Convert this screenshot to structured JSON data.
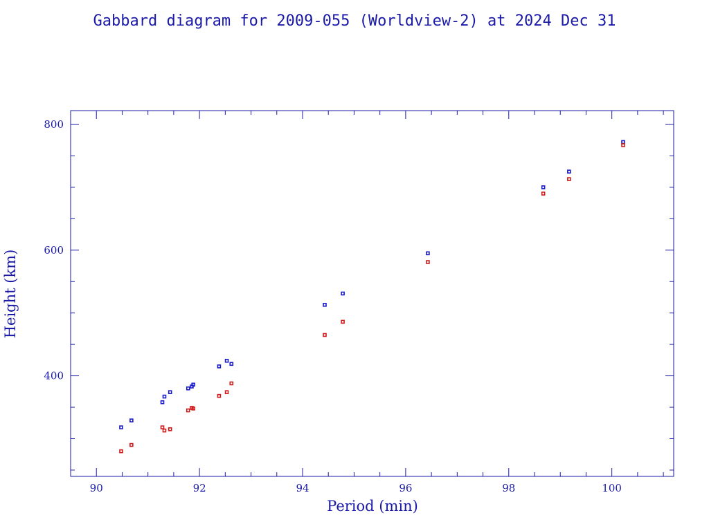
{
  "chart_data": {
    "type": "scatter",
    "title": "Gabbard diagram for 2009-055 (Worldview-2) at 2024 Dec 31",
    "xlabel": "Period (min)",
    "ylabel": "Height (km)",
    "xlim": [
      89.5,
      101.2
    ],
    "ylim": [
      240,
      822
    ],
    "x_major_ticks": [
      90,
      92,
      94,
      96,
      98,
      100
    ],
    "x_minor_step": 0.5,
    "y_major_ticks": [
      400,
      600,
      800
    ],
    "y_minor_step": 50,
    "grid": false,
    "legend": "none",
    "series": [
      {
        "color": "#1a1ac8",
        "points": [
          [
            90.48,
            318
          ],
          [
            90.68,
            329
          ],
          [
            91.28,
            358
          ],
          [
            91.32,
            367
          ],
          [
            91.43,
            374
          ],
          [
            91.78,
            380
          ],
          [
            91.85,
            383
          ],
          [
            91.88,
            386
          ],
          [
            92.38,
            415
          ],
          [
            92.53,
            424
          ],
          [
            92.62,
            419
          ],
          [
            94.43,
            513
          ],
          [
            94.78,
            531
          ],
          [
            96.43,
            595
          ],
          [
            98.67,
            700
          ],
          [
            99.17,
            725
          ],
          [
            100.22,
            772
          ]
        ]
      },
      {
        "color": "#d01a1a",
        "points": [
          [
            90.48,
            280
          ],
          [
            90.68,
            290
          ],
          [
            91.28,
            318
          ],
          [
            91.32,
            313
          ],
          [
            91.43,
            315
          ],
          [
            91.78,
            345
          ],
          [
            91.85,
            349
          ],
          [
            91.88,
            348
          ],
          [
            92.38,
            368
          ],
          [
            92.53,
            374
          ],
          [
            92.62,
            388
          ],
          [
            94.43,
            465
          ],
          [
            94.78,
            486
          ],
          [
            96.43,
            581
          ],
          [
            98.67,
            690
          ],
          [
            99.17,
            713
          ],
          [
            100.22,
            767
          ]
        ]
      }
    ]
  }
}
